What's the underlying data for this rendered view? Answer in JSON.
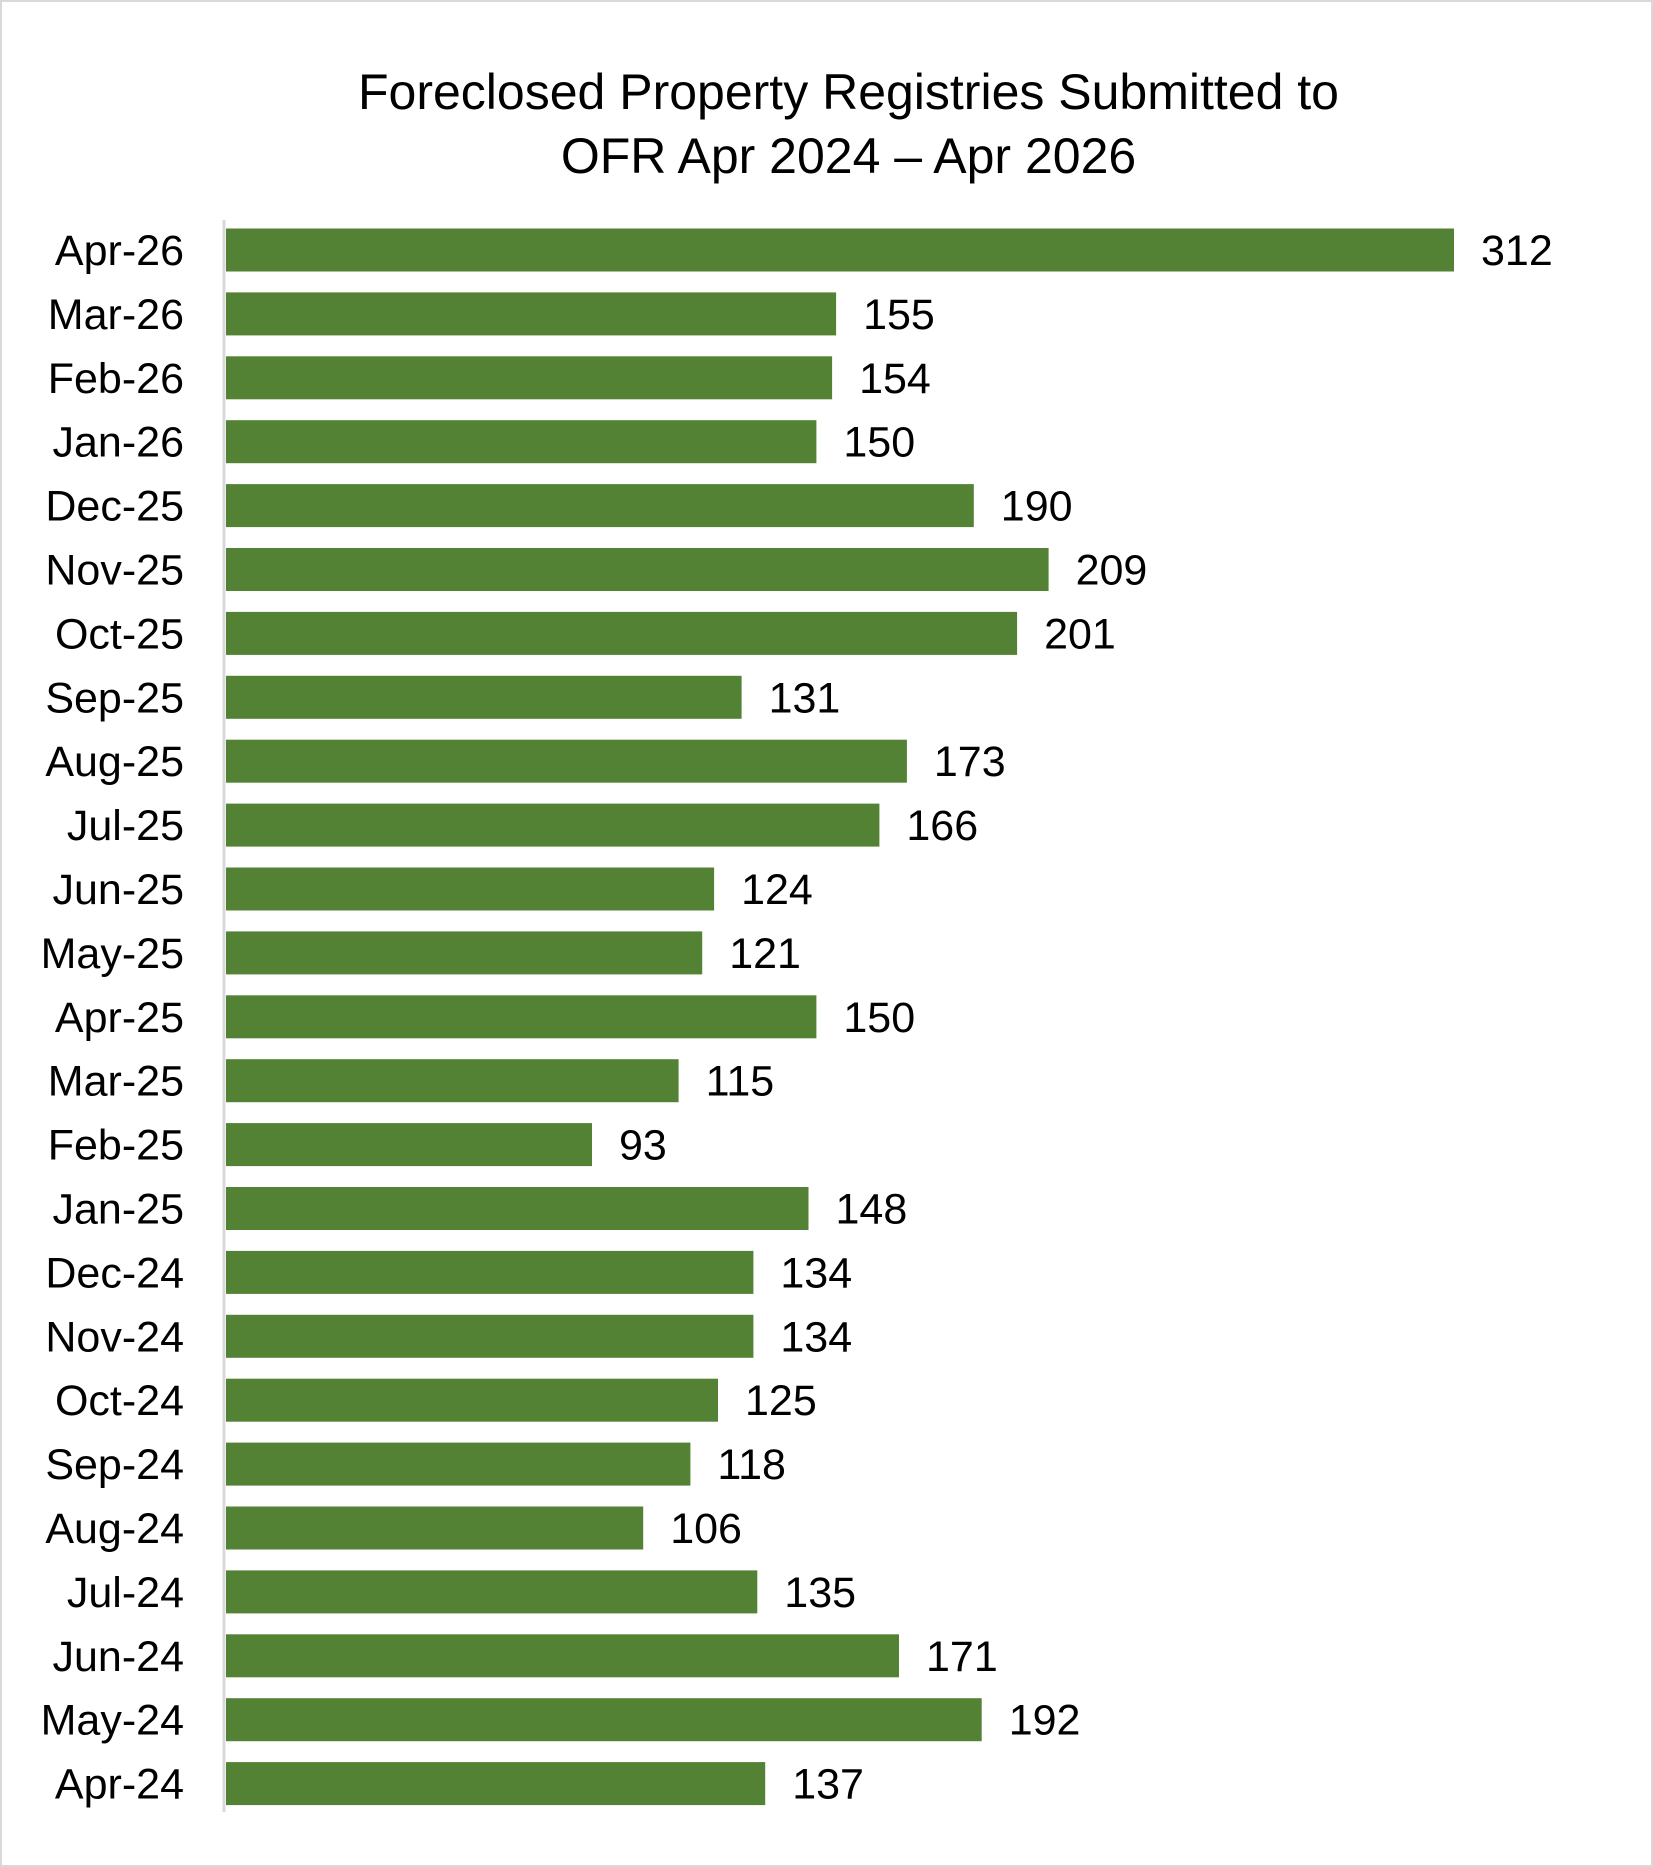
{
  "chart_data": {
    "type": "bar",
    "orientation": "horizontal",
    "title_line1": "Foreclosed Property Registries Submitted to",
    "title_line2": "OFR Apr 2024 – Apr 2026",
    "categories": [
      "Apr-26",
      "Mar-26",
      "Feb-26",
      "Jan-26",
      "Dec-25",
      "Nov-25",
      "Oct-25",
      "Sep-25",
      "Aug-25",
      "Jul-25",
      "Jun-25",
      "May-25",
      "Apr-25",
      "Mar-25",
      "Feb-25",
      "Jan-25",
      "Dec-24",
      "Nov-24",
      "Oct-24",
      "Sep-24",
      "Aug-24",
      "Jul-24",
      "Jun-24",
      "May-24",
      "Apr-24"
    ],
    "values": [
      312,
      155,
      154,
      150,
      190,
      209,
      201,
      131,
      173,
      166,
      124,
      121,
      150,
      115,
      93,
      148,
      134,
      134,
      125,
      118,
      106,
      135,
      171,
      192,
      137
    ],
    "data_labels": [
      "312",
      "155",
      "154",
      "150",
      "190",
      "209",
      "201",
      "131",
      "173",
      "166",
      "124",
      "121",
      "150",
      "115",
      "93",
      "148",
      "134",
      "134",
      "125",
      "118",
      "106",
      "135",
      "171",
      "192",
      "137"
    ],
    "xlim": [
      0,
      312
    ],
    "grid": false,
    "legend": "none",
    "bar_color": "#548235",
    "axis_color": "#d9d9d9"
  }
}
